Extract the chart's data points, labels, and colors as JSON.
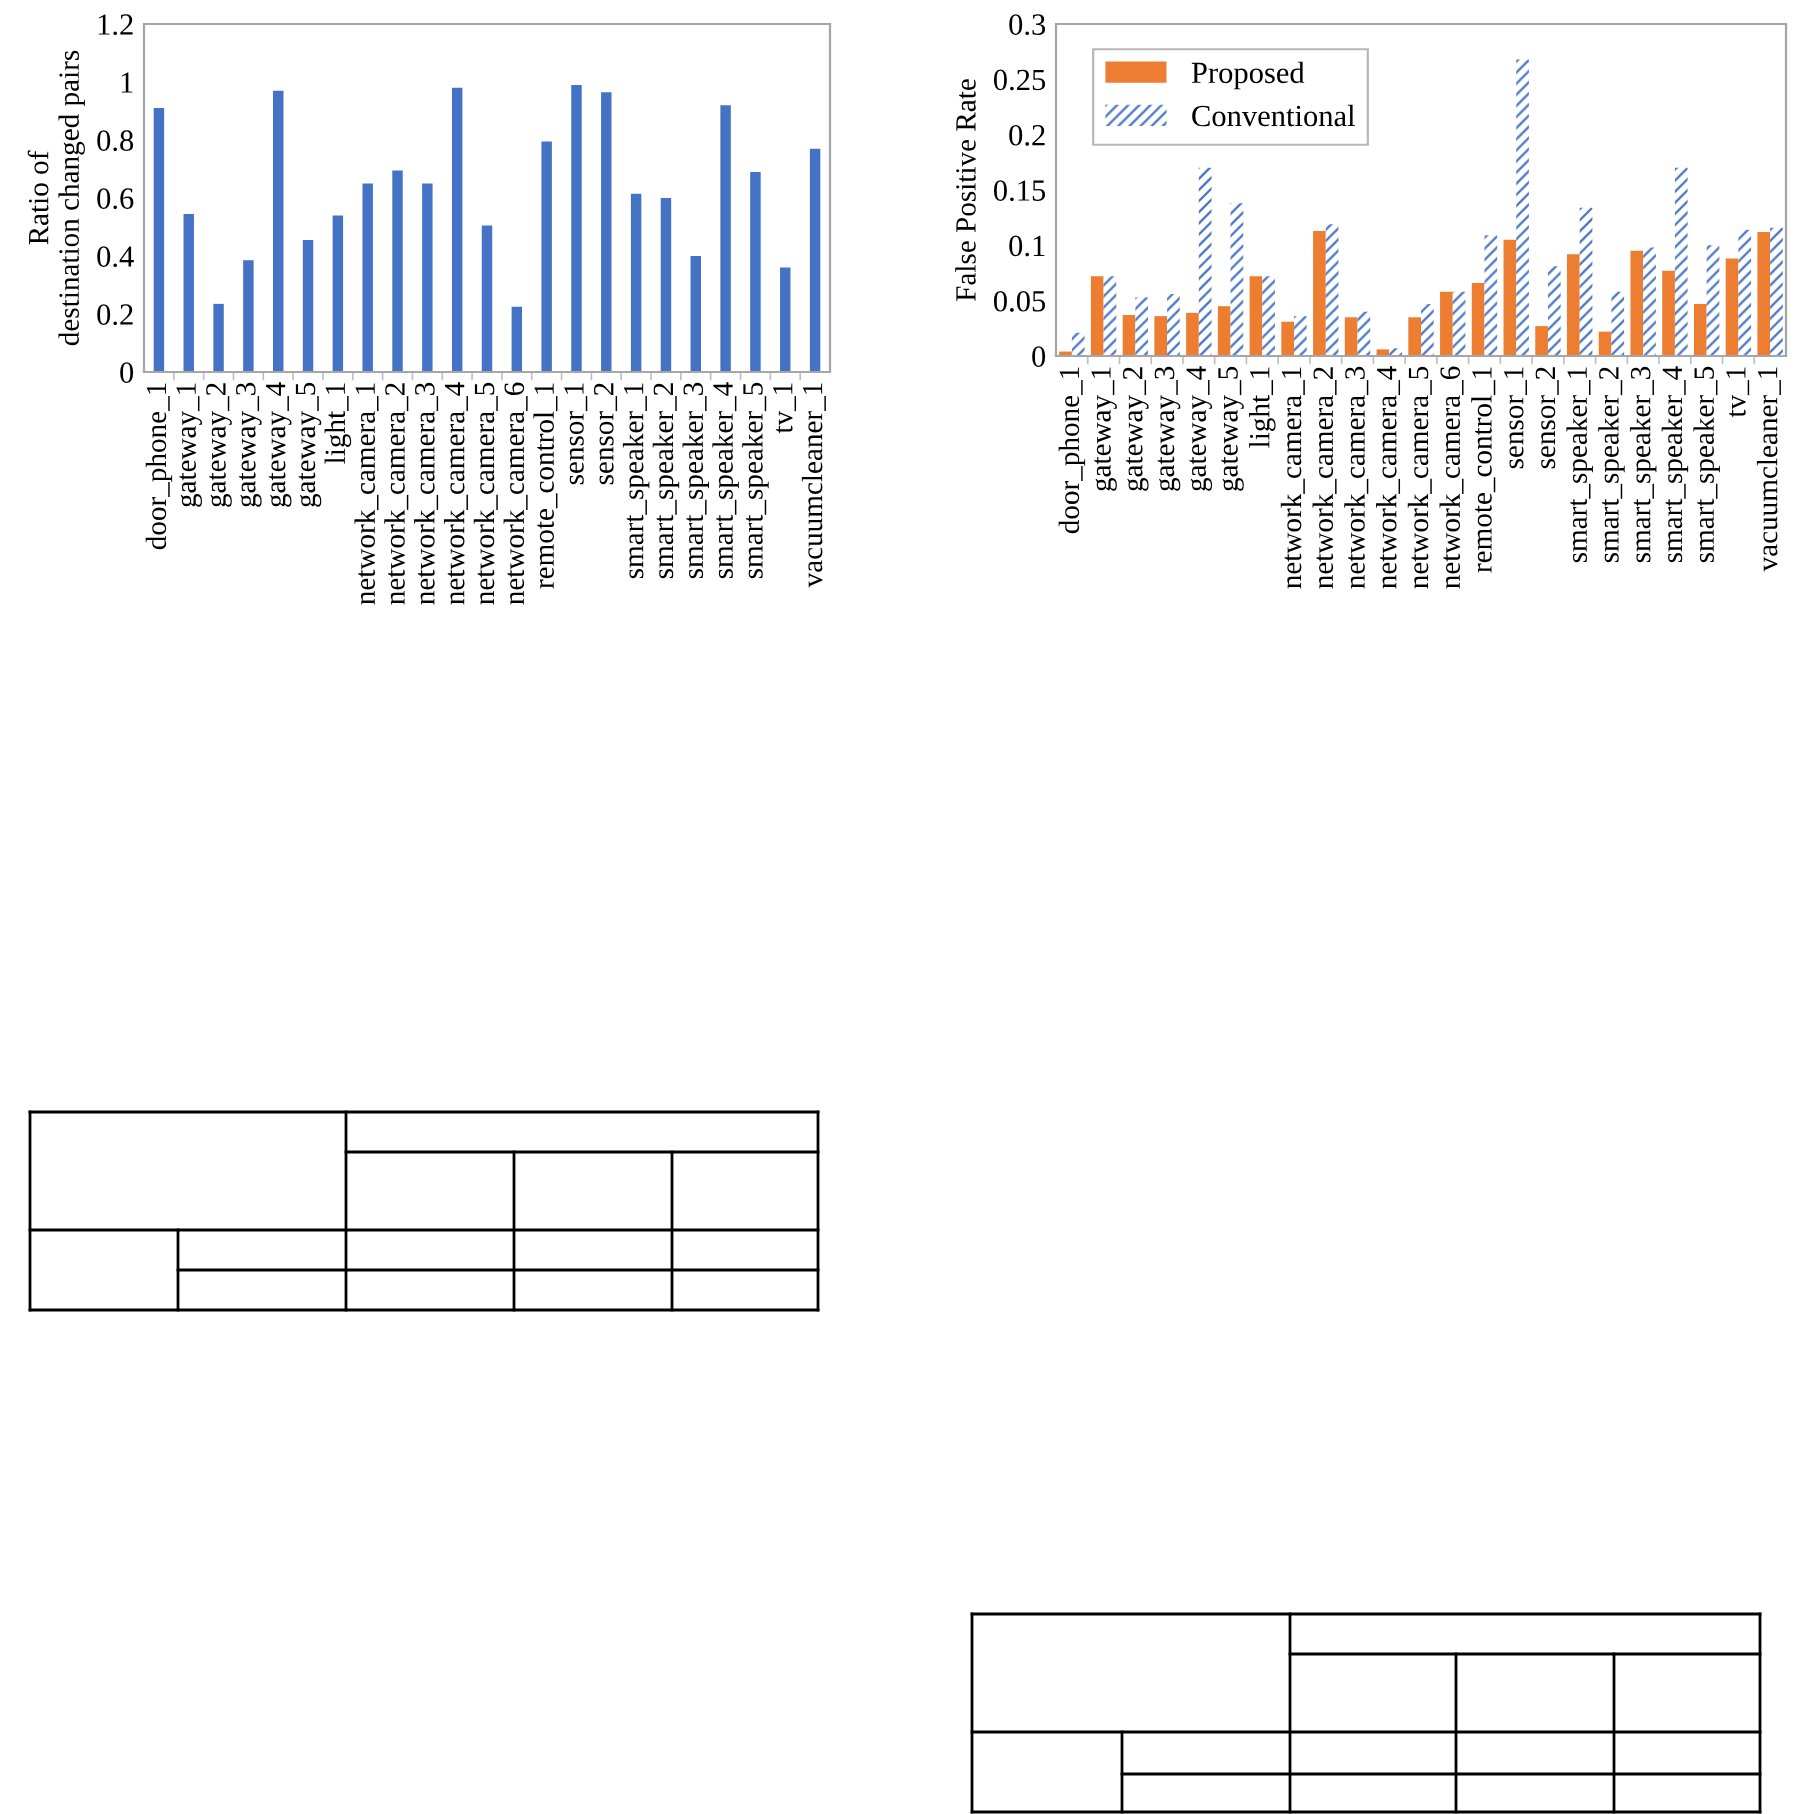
{
  "chart_data": [
    {
      "type": "bar",
      "ylabel": "Ratio of\ndestination changed pairs",
      "categories": [
        "door_phone_1",
        "gateway_1",
        "gateway_2",
        "gateway_3",
        "gateway_4",
        "gateway_5",
        "light_1",
        "network_camera_1",
        "network_camera_2",
        "network_camera_3",
        "network_camera_4",
        "network_camera_5",
        "network_camera_6",
        "remote_control_1",
        "sensor_1",
        "sensor_2",
        "smart_speaker_1",
        "smart_speaker_2",
        "smart_speaker_3",
        "smart_speaker_4",
        "smart_speaker_5",
        "tv_1",
        "vacuumcleaner_1"
      ],
      "values": [
        0.91,
        0.545,
        0.235,
        0.385,
        0.97,
        0.455,
        0.54,
        0.65,
        0.695,
        0.65,
        0.98,
        0.505,
        0.225,
        0.795,
        0.99,
        0.965,
        0.615,
        0.6,
        0.4,
        0.92,
        0.69,
        0.36,
        0.77
      ],
      "color": "#4472c4",
      "ylim": [
        0,
        1.2
      ],
      "yticks": [
        0,
        0.2,
        0.4,
        0.6,
        0.8,
        1,
        1.2
      ],
      "grid": false,
      "legend": false
    },
    {
      "type": "bar",
      "ylabel": "False Positive Rate",
      "categories": [
        "door_phone_1",
        "gateway_1",
        "gateway_2",
        "gateway_3",
        "gateway_4",
        "gateway_5",
        "light_1",
        "network_camera_1",
        "network_camera_2",
        "network_camera_3",
        "network_camera_4",
        "network_camera_5",
        "network_camera_6",
        "remote_control_1",
        "sensor_1",
        "sensor_2",
        "smart_speaker_1",
        "smart_speaker_2",
        "smart_speaker_3",
        "smart_speaker_4",
        "smart_speaker_5",
        "tv_1",
        "vacuumcleaner_1"
      ],
      "series": [
        {
          "name": "Proposed",
          "color": "#ed7d31",
          "values": [
            0.004,
            0.072,
            0.037,
            0.036,
            0.039,
            0.045,
            0.072,
            0.031,
            0.113,
            0.035,
            0.006,
            0.035,
            0.058,
            0.066,
            0.105,
            0.027,
            0.092,
            0.022,
            0.095,
            0.077,
            0.047,
            0.088,
            0.112
          ]
        },
        {
          "name": "Conventional",
          "color": "#4472c4",
          "values": [
            0.021,
            0.072,
            0.053,
            0.056,
            0.17,
            0.138,
            0.072,
            0.036,
            0.119,
            0.04,
            0.007,
            0.047,
            0.058,
            0.109,
            0.268,
            0.081,
            0.134,
            0.058,
            0.098,
            0.17,
            0.1,
            0.114,
            0.116
          ]
        }
      ],
      "ylim": [
        0,
        0.3
      ],
      "yticks": [
        0,
        0.05,
        0.1,
        0.15,
        0.2,
        0.25,
        0.3
      ],
      "grid": false,
      "legend": "top left"
    }
  ]
}
